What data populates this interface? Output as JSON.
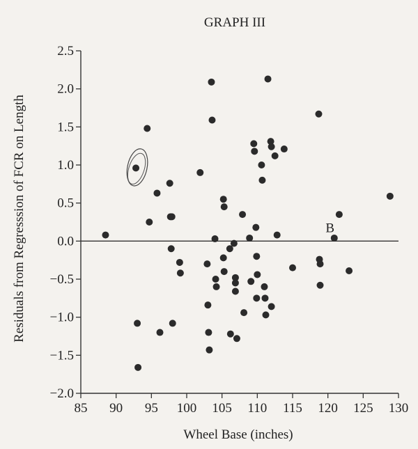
{
  "chart_data": {
    "type": "scatter",
    "title": "GRAPH III",
    "xlabel": "Wheel Base (inches)",
    "ylabel": "Residuals from Regresssion of FCR on Length",
    "xlim": [
      85,
      130
    ],
    "ylim": [
      -2.0,
      2.5
    ],
    "x_ticks": [
      85,
      90,
      95,
      100,
      105,
      110,
      115,
      120,
      125,
      130
    ],
    "y_ticks": [
      2.5,
      2.0,
      1.5,
      1.0,
      0.5,
      0.0,
      -0.5,
      -1.0,
      -1.5,
      -2.0
    ],
    "x_tick_labels": [
      "85",
      "90",
      "95",
      "100",
      "105",
      "110",
      "115",
      "120",
      "125",
      "130"
    ],
    "y_tick_labels": [
      "2.5",
      "2.0",
      "1.5",
      "1.0",
      "0.5",
      "0.0",
      "−0.5",
      "−1.0",
      "−1.5",
      "−2.0"
    ],
    "reference_line_y": 0.0,
    "annotations": [
      {
        "text": "B",
        "x": 120.3,
        "y": 0.1
      }
    ],
    "circled_point": {
      "x": 92.8,
      "y": 0.96
    },
    "grid": false,
    "series": [
      {
        "points": [
          [
            88.5,
            0.08
          ],
          [
            92.8,
            0.96
          ],
          [
            93.0,
            -1.08
          ],
          [
            93.1,
            -1.66
          ],
          [
            94.4,
            1.48
          ],
          [
            94.7,
            0.25
          ],
          [
            95.8,
            0.63
          ],
          [
            96.2,
            -1.2
          ],
          [
            97.6,
            0.76
          ],
          [
            97.7,
            0.32
          ],
          [
            97.9,
            0.32
          ],
          [
            97.8,
            -0.1
          ],
          [
            98.0,
            -1.08
          ],
          [
            99.0,
            -0.28
          ],
          [
            99.1,
            -0.42
          ],
          [
            101.9,
            0.9
          ],
          [
            102.9,
            -0.3
          ],
          [
            103.0,
            -0.84
          ],
          [
            103.1,
            -1.2
          ],
          [
            103.2,
            -1.43
          ],
          [
            103.5,
            2.09
          ],
          [
            103.6,
            1.59
          ],
          [
            104.0,
            0.03
          ],
          [
            104.1,
            -0.5
          ],
          [
            104.2,
            -0.6
          ],
          [
            105.2,
            0.55
          ],
          [
            105.3,
            0.45
          ],
          [
            105.2,
            -0.22
          ],
          [
            105.3,
            -0.4
          ],
          [
            106.1,
            -0.1
          ],
          [
            106.2,
            -1.22
          ],
          [
            106.7,
            -0.03
          ],
          [
            106.9,
            -0.48
          ],
          [
            106.9,
            -0.55
          ],
          [
            106.9,
            -0.66
          ],
          [
            107.1,
            -1.28
          ],
          [
            107.9,
            0.35
          ],
          [
            108.1,
            -0.94
          ],
          [
            108.9,
            0.04
          ],
          [
            109.1,
            -0.53
          ],
          [
            109.5,
            1.28
          ],
          [
            109.6,
            1.18
          ],
          [
            109.8,
            0.18
          ],
          [
            109.9,
            -0.2
          ],
          [
            110.0,
            -0.44
          ],
          [
            109.9,
            -0.75
          ],
          [
            110.6,
            1.0
          ],
          [
            110.7,
            0.8
          ],
          [
            111.0,
            -0.6
          ],
          [
            111.1,
            -0.75
          ],
          [
            111.2,
            -0.97
          ],
          [
            111.5,
            2.13
          ],
          [
            111.9,
            1.31
          ],
          [
            112.0,
            1.24
          ],
          [
            112.0,
            -0.86
          ],
          [
            112.5,
            1.12
          ],
          [
            112.8,
            0.08
          ],
          [
            113.8,
            1.21
          ],
          [
            115.0,
            -0.35
          ],
          [
            118.7,
            1.67
          ],
          [
            118.8,
            -0.24
          ],
          [
            118.9,
            -0.3
          ],
          [
            118.9,
            -0.58
          ],
          [
            120.9,
            0.04
          ],
          [
            121.6,
            0.35
          ],
          [
            123.0,
            -0.39
          ],
          [
            128.8,
            0.59
          ]
        ]
      }
    ]
  }
}
